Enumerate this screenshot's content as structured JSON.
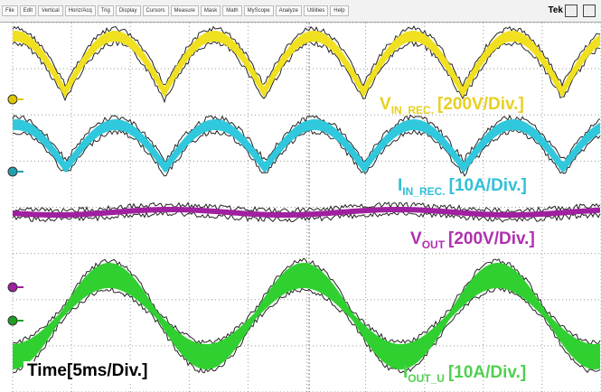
{
  "menu": [
    "File",
    "Edit",
    "Vertical",
    "Horiz/Acq",
    "Trig",
    "Display",
    "Cursors",
    "Measure",
    "Mask",
    "Math",
    "MyScope",
    "Analyze",
    "Utilities",
    "Help"
  ],
  "brand": "Tek",
  "labels": [
    {
      "main": "V",
      "sub": "IN_REC.",
      "scale": "[200V/Div.]"
    },
    {
      "main": "I",
      "sub": "IN_REC.",
      "scale": "[10A/Div.]"
    },
    {
      "main": "V",
      "sub": "OUT",
      "scale": "[200V/Div.]"
    },
    {
      "main": "I",
      "sub": "OUT_U",
      "scale": "[10A/Div.]"
    }
  ],
  "time_label": "Time[5ms/Div.]"
}
